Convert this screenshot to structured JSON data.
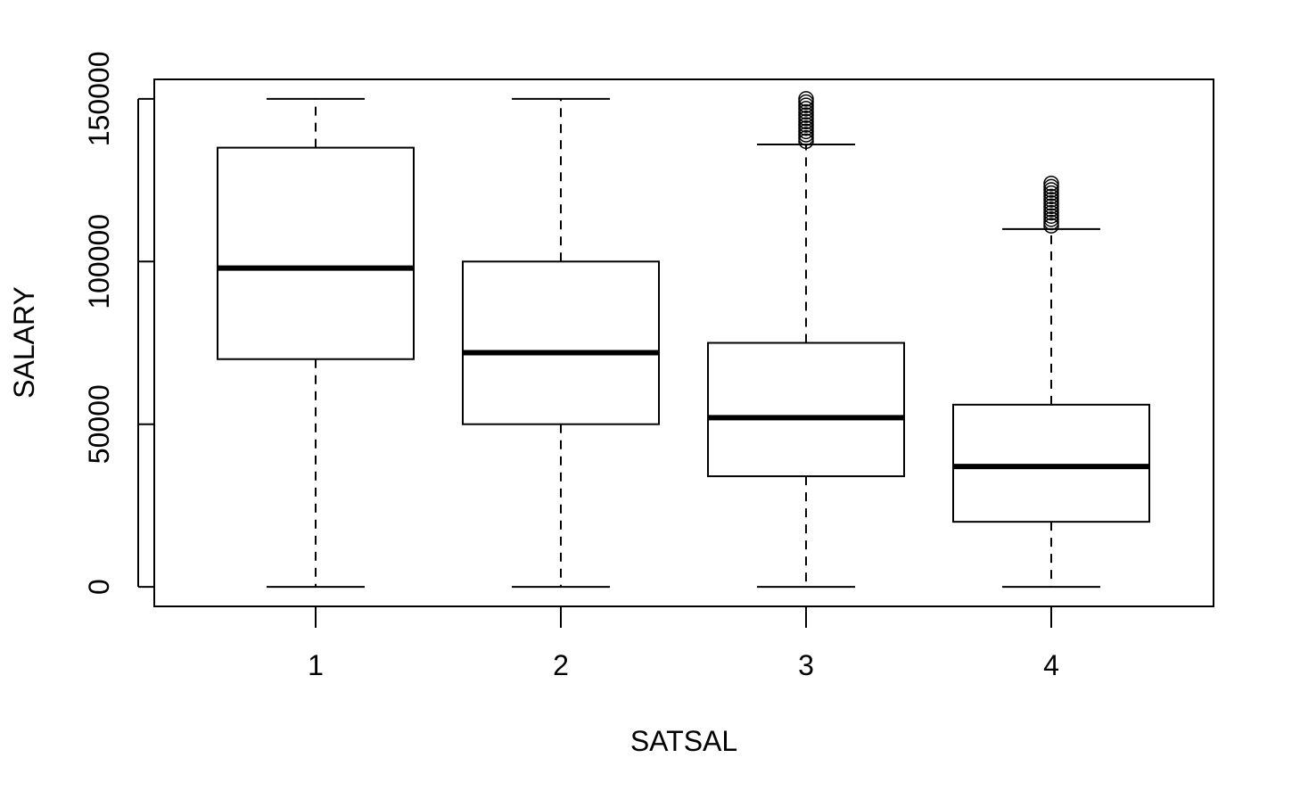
{
  "chart_data": {
    "type": "box",
    "xlabel": "SATSAL",
    "ylabel": "SALARY",
    "categories": [
      "1",
      "2",
      "3",
      "4"
    ],
    "ylim": [
      -6000,
      156000
    ],
    "yticks": [
      0,
      50000,
      100000,
      150000
    ],
    "ytick_labels": [
      "0",
      "50000",
      "100000",
      "150000"
    ],
    "grid": false,
    "boxes": [
      {
        "category": "1",
        "whisker_low": 0,
        "q1": 70000,
        "median": 98000,
        "q3": 135000,
        "whisker_high": 150000,
        "outliers": []
      },
      {
        "category": "2",
        "whisker_low": 0,
        "q1": 50000,
        "median": 72000,
        "q3": 100000,
        "whisker_high": 150000,
        "outliers": []
      },
      {
        "category": "3",
        "whisker_low": 0,
        "q1": 34000,
        "median": 52000,
        "q3": 75000,
        "whisker_high": 136000,
        "outliers": [
          137000,
          138000,
          139000,
          140000,
          141000,
          142000,
          143000,
          144000,
          145000,
          146000,
          147000,
          148000,
          149000,
          150000
        ]
      },
      {
        "category": "4",
        "whisker_low": 0,
        "q1": 20000,
        "median": 37000,
        "q3": 56000,
        "whisker_high": 110000,
        "outliers": [
          111000,
          112000,
          113000,
          114000,
          115000,
          116000,
          117000,
          118000,
          119000,
          120000,
          121000,
          122000,
          123000,
          124000
        ]
      }
    ]
  }
}
